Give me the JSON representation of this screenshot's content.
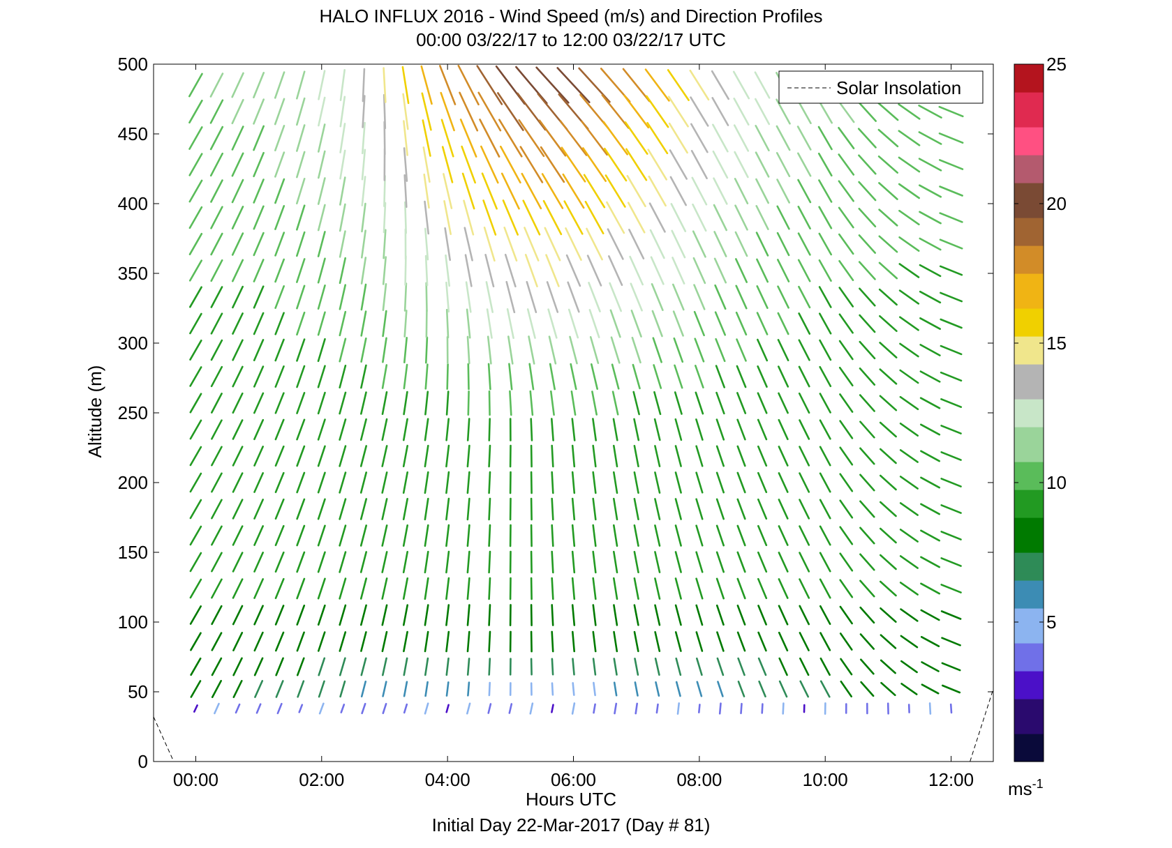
{
  "chart_data": {
    "type": "quiver",
    "title": "HALO INFLUX 2016 - Wind Speed (m/s) and Direction Profiles",
    "subtitle": "00:00 03/22/17 to 12:00 03/22/17  UTC",
    "xlabel": "Hours UTC",
    "xlabel2": "Initial Day 22-Mar-2017 (Day # 81)",
    "ylabel": "Altitude (m)",
    "xlim_hours": [
      -0.67,
      12.67
    ],
    "ylim": [
      0,
      500
    ],
    "x_tick_labels": [
      "00:00",
      "02:00",
      "04:00",
      "06:00",
      "08:00",
      "10:00",
      "12:00"
    ],
    "x_tick_values": [
      0,
      2,
      4,
      6,
      8,
      10,
      12
    ],
    "y_tick_values": [
      0,
      50,
      100,
      150,
      200,
      250,
      300,
      350,
      400,
      450,
      500
    ],
    "legend": {
      "label": "Solar Insolation",
      "position": "top-right",
      "style": "dashed"
    },
    "colorbar": {
      "range": [
        0,
        25
      ],
      "ticks": [
        5,
        10,
        15,
        20,
        25
      ],
      "unit_label": "ms",
      "unit_exponent": "-1",
      "colors": [
        "#0a0a3a",
        "#2a0a6e",
        "#4b10c8",
        "#7070e8",
        "#8cb4f0",
        "#3c8cb4",
        "#2e8b57",
        "#007a00",
        "#229a22",
        "#5abc5a",
        "#9ad49a",
        "#c8e6c8",
        "#b4b4b4",
        "#f0e68c",
        "#f0d000",
        "#f0b414",
        "#d28c28",
        "#a06432",
        "#7a4a34",
        "#b45a6e",
        "#ff5082",
        "#e02a50",
        "#b4141e"
      ]
    },
    "time_hours": [
      0,
      0.333,
      0.667,
      1,
      1.333,
      1.667,
      2,
      2.333,
      2.667,
      3,
      3.333,
      3.667,
      4,
      4.333,
      4.667,
      5,
      5.333,
      5.667,
      6,
      6.333,
      6.667,
      7,
      7.333,
      7.667,
      8,
      8.333,
      8.667,
      9,
      9.333,
      9.667,
      10,
      10.333,
      10.667,
      11,
      11.333,
      11.667,
      12
    ],
    "altitudes_m": [
      38,
      52,
      68,
      86,
      105,
      124,
      143,
      162,
      181,
      200,
      219,
      238,
      257,
      276,
      295,
      314,
      333,
      352,
      371,
      390,
      409,
      428,
      447,
      466,
      485
    ],
    "solar_insolation_hours": [
      [
        -0.67,
        32
      ],
      [
        -0.35,
        0
      ],
      [
        12.3,
        0
      ],
      [
        12.67,
        52
      ]
    ]
  }
}
